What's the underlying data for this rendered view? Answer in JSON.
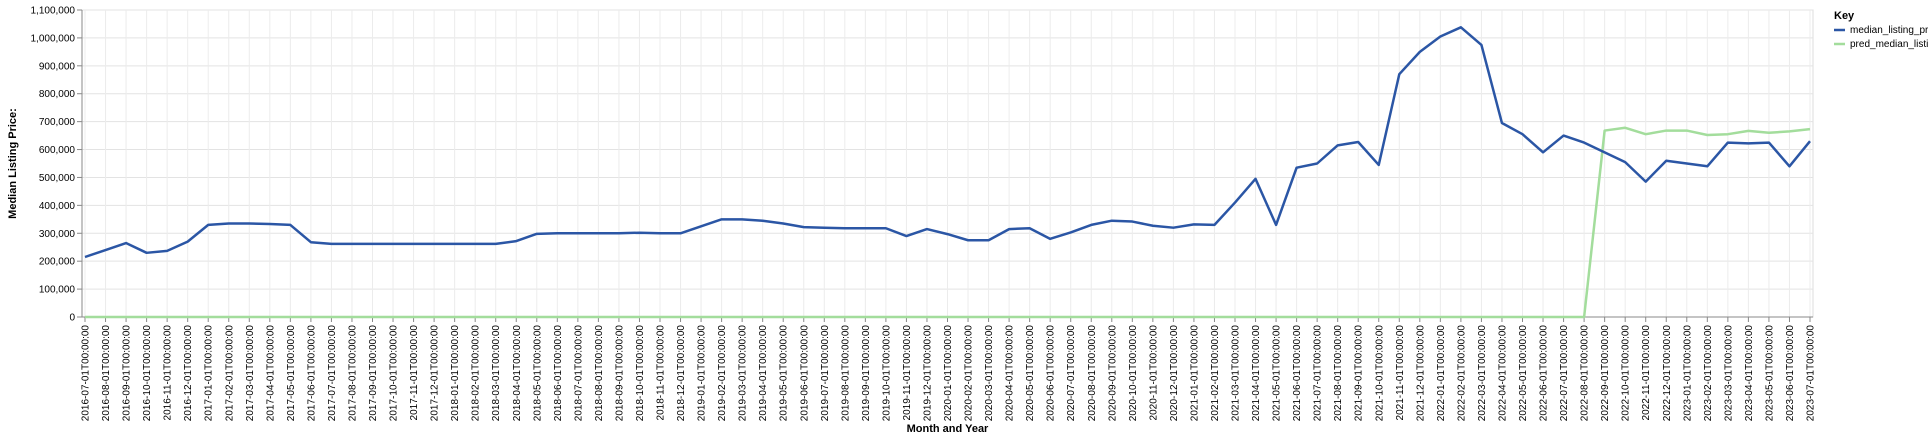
{
  "chart_data": {
    "type": "line",
    "title": "",
    "xlabel": "Month and Year",
    "ylabel": "Median Listing Price:",
    "ylim": [
      0,
      1100000
    ],
    "yticks": [
      0,
      100000,
      200000,
      300000,
      400000,
      500000,
      600000,
      700000,
      800000,
      900000,
      1000000,
      1100000
    ],
    "ytick_labels": [
      "0",
      "100,000",
      "200,000",
      "300,000",
      "400,000",
      "500,000",
      "600,000",
      "700,000",
      "800,000",
      "900,000",
      "1,000,000",
      "1,100,000"
    ],
    "grid": true,
    "legend": {
      "title": "Key",
      "position": "top-right"
    },
    "x": [
      "2016-07-01T00:00:00",
      "2016-08-01T00:00:00",
      "2016-09-01T00:00:00",
      "2016-10-01T00:00:00",
      "2016-11-01T00:00:00",
      "2016-12-01T00:00:00",
      "2017-01-01T00:00:00",
      "2017-02-01T00:00:00",
      "2017-03-01T00:00:00",
      "2017-04-01T00:00:00",
      "2017-05-01T00:00:00",
      "2017-06-01T00:00:00",
      "2017-07-01T00:00:00",
      "2017-08-01T00:00:00",
      "2017-09-01T00:00:00",
      "2017-10-01T00:00:00",
      "2017-11-01T00:00:00",
      "2017-12-01T00:00:00",
      "2018-01-01T00:00:00",
      "2018-02-01T00:00:00",
      "2018-03-01T00:00:00",
      "2018-04-01T00:00:00",
      "2018-05-01T00:00:00",
      "2018-06-01T00:00:00",
      "2018-07-01T00:00:00",
      "2018-08-01T00:00:00",
      "2018-09-01T00:00:00",
      "2018-10-01T00:00:00",
      "2018-11-01T00:00:00",
      "2018-12-01T00:00:00",
      "2019-01-01T00:00:00",
      "2019-02-01T00:00:00",
      "2019-03-01T00:00:00",
      "2019-04-01T00:00:00",
      "2019-05-01T00:00:00",
      "2019-06-01T00:00:00",
      "2019-07-01T00:00:00",
      "2019-08-01T00:00:00",
      "2019-09-01T00:00:00",
      "2019-10-01T00:00:00",
      "2019-11-01T00:00:00",
      "2019-12-01T00:00:00",
      "2020-01-01T00:00:00",
      "2020-02-01T00:00:00",
      "2020-03-01T00:00:00",
      "2020-04-01T00:00:00",
      "2020-05-01T00:00:00",
      "2020-06-01T00:00:00",
      "2020-07-01T00:00:00",
      "2020-08-01T00:00:00",
      "2020-09-01T00:00:00",
      "2020-10-01T00:00:00",
      "2020-11-01T00:00:00",
      "2020-12-01T00:00:00",
      "2021-01-01T00:00:00",
      "2021-02-01T00:00:00",
      "2021-03-01T00:00:00",
      "2021-04-01T00:00:00",
      "2021-05-01T00:00:00",
      "2021-06-01T00:00:00",
      "2021-07-01T00:00:00",
      "2021-08-01T00:00:00",
      "2021-09-01T00:00:00",
      "2021-10-01T00:00:00",
      "2021-11-01T00:00:00",
      "2021-12-01T00:00:00",
      "2022-01-01T00:00:00",
      "2022-02-01T00:00:00",
      "2022-03-01T00:00:00",
      "2022-04-01T00:00:00",
      "2022-05-01T00:00:00",
      "2022-06-01T00:00:00",
      "2022-07-01T00:00:00",
      "2022-08-01T00:00:00",
      "2022-09-01T00:00:00",
      "2022-10-01T00:00:00",
      "2022-11-01T00:00:00",
      "2022-12-01T00:00:00",
      "2023-01-01T00:00:00",
      "2023-02-01T00:00:00",
      "2023-03-01T00:00:00",
      "2023-04-01T00:00:00",
      "2023-05-01T00:00:00",
      "2023-06-01T00:00:00",
      "2023-07-01T00:00:00"
    ],
    "series": [
      {
        "name": "median_listing_pri…",
        "color": "#2b56a5",
        "values": [
          215000,
          240000,
          265000,
          230000,
          237000,
          270000,
          330000,
          335000,
          335000,
          333000,
          330000,
          268000,
          262000,
          262000,
          262000,
          262000,
          262000,
          262000,
          262000,
          262000,
          262000,
          272000,
          298000,
          300000,
          300000,
          300000,
          300000,
          302000,
          300000,
          300000,
          325000,
          350000,
          350000,
          345000,
          335000,
          322000,
          320000,
          318000,
          318000,
          318000,
          290000,
          315000,
          297000,
          275000,
          275000,
          315000,
          318000,
          280000,
          303000,
          330000,
          345000,
          342000,
          327000,
          320000,
          332000,
          330000,
          410000,
          495000,
          330000,
          535000,
          550000,
          615000,
          627000,
          545000,
          870000,
          950000,
          1005000,
          1038000,
          975000,
          695000,
          655000,
          590000,
          650000,
          625000,
          590000,
          555000,
          485000,
          560000,
          550000,
          540000,
          625000,
          622000,
          625000,
          540000,
          630000
        ]
      },
      {
        "name": "pred_median_listin…",
        "color": "#a3dd9c",
        "values": [
          0,
          0,
          0,
          0,
          0,
          0,
          0,
          0,
          0,
          0,
          0,
          0,
          0,
          0,
          0,
          0,
          0,
          0,
          0,
          0,
          0,
          0,
          0,
          0,
          0,
          0,
          0,
          0,
          0,
          0,
          0,
          0,
          0,
          0,
          0,
          0,
          0,
          0,
          0,
          0,
          0,
          0,
          0,
          0,
          0,
          0,
          0,
          0,
          0,
          0,
          0,
          0,
          0,
          0,
          0,
          0,
          0,
          0,
          0,
          0,
          0,
          0,
          0,
          0,
          0,
          0,
          0,
          0,
          0,
          0,
          0,
          0,
          0,
          0,
          668000,
          678000,
          655000,
          668000,
          668000,
          652000,
          655000,
          667000,
          660000,
          665000,
          673000
        ]
      }
    ]
  }
}
